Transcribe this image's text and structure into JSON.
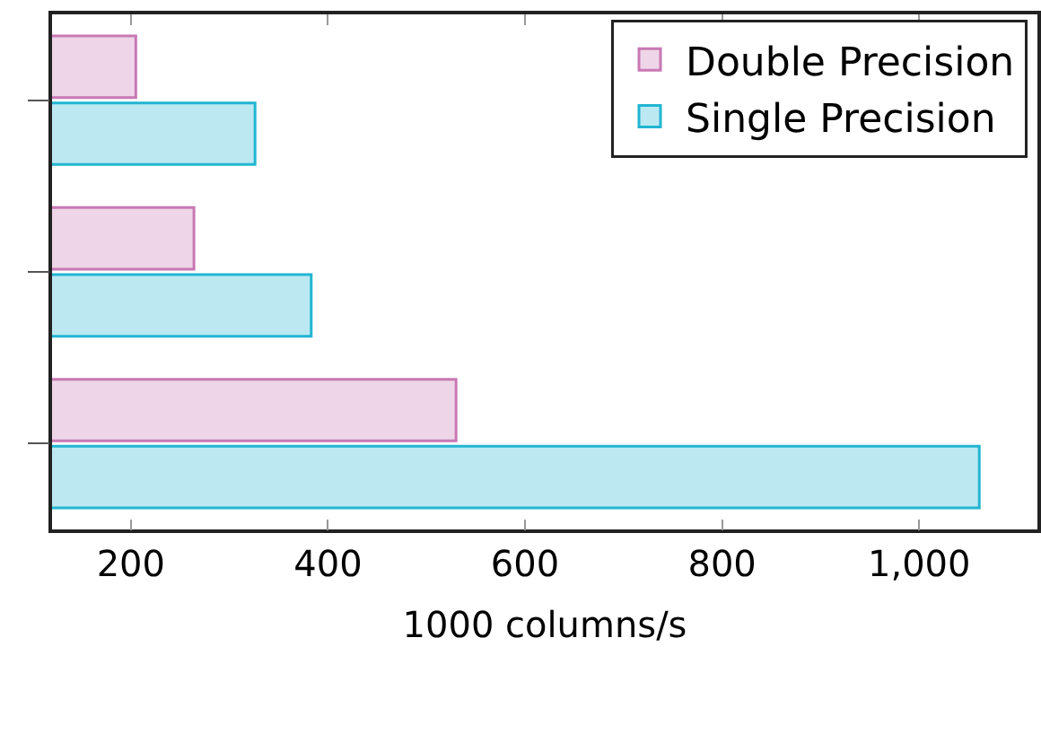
{
  "chart_data": {
    "type": "bar",
    "orientation": "horizontal",
    "xlabel": "1000 columns/s",
    "categories": [
      null,
      null,
      null
    ],
    "series": [
      {
        "name": "Double Precision",
        "color": "#c878b4",
        "values": [
          205,
          264,
          530
        ]
      },
      {
        "name": "Single Precision",
        "color": "#22b5d2",
        "values": [
          326,
          383,
          1061
        ]
      }
    ],
    "xlim": [
      120,
      1120
    ],
    "xticks": [
      200,
      400,
      600,
      800,
      {
        "value": 1000,
        "label": "1,000"
      }
    ],
    "tick_labels": "x",
    "grid": false,
    "legend": "top right"
  }
}
